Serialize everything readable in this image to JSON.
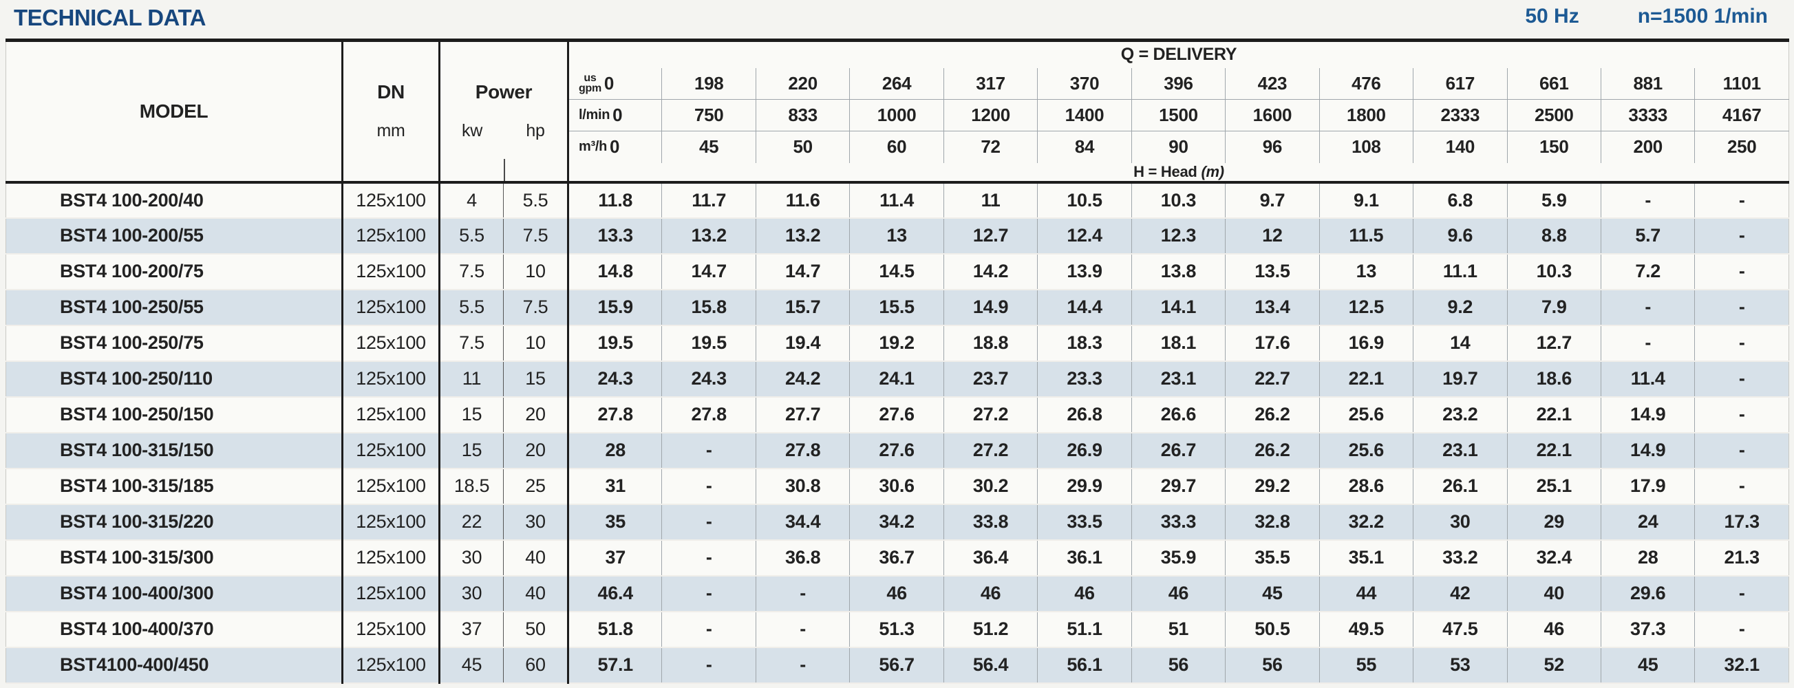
{
  "page": {
    "title": "TECHNICAL DATA",
    "frequency": "50 Hz",
    "speed": "n=1500 1/min"
  },
  "colors": {
    "accent": "#17477e",
    "header_blue": "#1d5a94",
    "row_alt": "#d7e1e9",
    "line_heavy": "#1c1c1c",
    "line_thin": "#9fa6ab"
  },
  "table": {
    "model_header": "MODEL",
    "dn_header": "DN",
    "dn_unit": "mm",
    "power_header": "Power",
    "power_units": [
      "kw",
      "hp"
    ],
    "delivery_header": "Q = DELIVERY",
    "head_label": "H = Head",
    "head_unit": "(m)",
    "unit_rows": [
      {
        "name": "us-gpm",
        "label": "us\ngpm",
        "values": [
          "0",
          "198",
          "220",
          "264",
          "317",
          "370",
          "396",
          "423",
          "476",
          "617",
          "661",
          "881",
          "1101"
        ]
      },
      {
        "name": "l-min",
        "label": "l/min",
        "values": [
          "0",
          "750",
          "833",
          "1000",
          "1200",
          "1400",
          "1500",
          "1600",
          "1800",
          "2333",
          "2500",
          "3333",
          "4167"
        ]
      },
      {
        "name": "m3-h",
        "label": "m³/h",
        "values": [
          "0",
          "45",
          "50",
          "60",
          "72",
          "84",
          "90",
          "96",
          "108",
          "140",
          "150",
          "200",
          "250"
        ]
      }
    ],
    "rows": [
      {
        "model": "BST4 100-200/40",
        "dn": "125x100",
        "kw": "4",
        "hp": "5.5",
        "head": [
          "11.8",
          "11.7",
          "11.6",
          "11.4",
          "11",
          "10.5",
          "10.3",
          "9.7",
          "9.1",
          "6.8",
          "5.9",
          "-",
          "-"
        ]
      },
      {
        "model": "BST4 100-200/55",
        "dn": "125x100",
        "kw": "5.5",
        "hp": "7.5",
        "head": [
          "13.3",
          "13.2",
          "13.2",
          "13",
          "12.7",
          "12.4",
          "12.3",
          "12",
          "11.5",
          "9.6",
          "8.8",
          "5.7",
          "-"
        ]
      },
      {
        "model": "BST4 100-200/75",
        "dn": "125x100",
        "kw": "7.5",
        "hp": "10",
        "head": [
          "14.8",
          "14.7",
          "14.7",
          "14.5",
          "14.2",
          "13.9",
          "13.8",
          "13.5",
          "13",
          "11.1",
          "10.3",
          "7.2",
          "-"
        ]
      },
      {
        "model": "BST4 100-250/55",
        "dn": "125x100",
        "kw": "5.5",
        "hp": "7.5",
        "head": [
          "15.9",
          "15.8",
          "15.7",
          "15.5",
          "14.9",
          "14.4",
          "14.1",
          "13.4",
          "12.5",
          "9.2",
          "7.9",
          "-",
          "-"
        ]
      },
      {
        "model": "BST4 100-250/75",
        "dn": "125x100",
        "kw": "7.5",
        "hp": "10",
        "head": [
          "19.5",
          "19.5",
          "19.4",
          "19.2",
          "18.8",
          "18.3",
          "18.1",
          "17.6",
          "16.9",
          "14",
          "12.7",
          "-",
          "-"
        ]
      },
      {
        "model": "BST4 100-250/110",
        "dn": "125x100",
        "kw": "11",
        "hp": "15",
        "head": [
          "24.3",
          "24.3",
          "24.2",
          "24.1",
          "23.7",
          "23.3",
          "23.1",
          "22.7",
          "22.1",
          "19.7",
          "18.6",
          "11.4",
          "-"
        ]
      },
      {
        "model": "BST4 100-250/150",
        "dn": "125x100",
        "kw": "15",
        "hp": "20",
        "head": [
          "27.8",
          "27.8",
          "27.7",
          "27.6",
          "27.2",
          "26.8",
          "26.6",
          "26.2",
          "25.6",
          "23.2",
          "22.1",
          "14.9",
          "-"
        ]
      },
      {
        "model": "BST4 100-315/150",
        "dn": "125x100",
        "kw": "15",
        "hp": "20",
        "head": [
          "28",
          "-",
          "27.8",
          "27.6",
          "27.2",
          "26.9",
          "26.7",
          "26.2",
          "25.6",
          "23.1",
          "22.1",
          "14.9",
          "-"
        ]
      },
      {
        "model": "BST4 100-315/185",
        "dn": "125x100",
        "kw": "18.5",
        "hp": "25",
        "head": [
          "31",
          "-",
          "30.8",
          "30.6",
          "30.2",
          "29.9",
          "29.7",
          "29.2",
          "28.6",
          "26.1",
          "25.1",
          "17.9",
          "-"
        ]
      },
      {
        "model": "BST4 100-315/220",
        "dn": "125x100",
        "kw": "22",
        "hp": "30",
        "head": [
          "35",
          "-",
          "34.4",
          "34.2",
          "33.8",
          "33.5",
          "33.3",
          "32.8",
          "32.2",
          "30",
          "29",
          "24",
          "17.3"
        ]
      },
      {
        "model": "BST4 100-315/300",
        "dn": "125x100",
        "kw": "30",
        "hp": "40",
        "head": [
          "37",
          "-",
          "36.8",
          "36.7",
          "36.4",
          "36.1",
          "35.9",
          "35.5",
          "35.1",
          "33.2",
          "32.4",
          "28",
          "21.3"
        ]
      },
      {
        "model": "BST4 100-400/300",
        "dn": "125x100",
        "kw": "30",
        "hp": "40",
        "head": [
          "46.4",
          "-",
          "-",
          "46",
          "46",
          "46",
          "46",
          "45",
          "44",
          "42",
          "40",
          "29.6",
          "-"
        ]
      },
      {
        "model": "BST4 100-400/370",
        "dn": "125x100",
        "kw": "37",
        "hp": "50",
        "head": [
          "51.8",
          "-",
          "-",
          "51.3",
          "51.2",
          "51.1",
          "51",
          "50.5",
          "49.5",
          "47.5",
          "46",
          "37.3",
          "-"
        ]
      },
      {
        "model": "BST4100-400/450",
        "dn": "125x100",
        "kw": "45",
        "hp": "60",
        "head": [
          "57.1",
          "-",
          "-",
          "56.7",
          "56.4",
          "56.1",
          "56",
          "56",
          "55",
          "53",
          "52",
          "45",
          "32.1"
        ]
      }
    ]
  }
}
